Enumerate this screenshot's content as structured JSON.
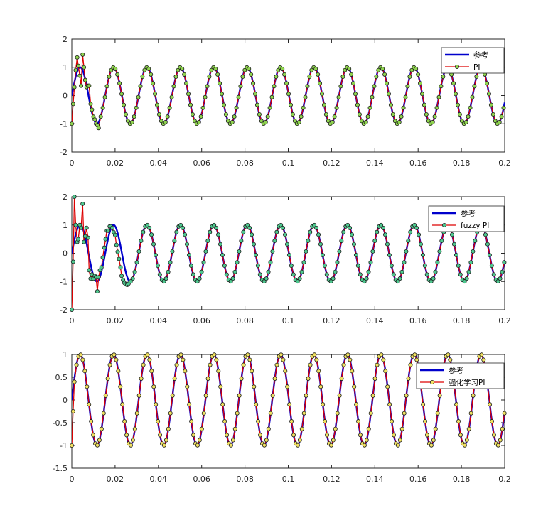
{
  "chart_data": [
    {
      "type": "line",
      "xlim": [
        0,
        0.2
      ],
      "ylim": [
        -2,
        2
      ],
      "xticks": [
        "0",
        "0.02",
        "0.04",
        "0.06",
        "0.08",
        "0.1",
        "0.12",
        "0.14",
        "0.16",
        "0.18",
        "0.2"
      ],
      "yticks": [
        "2",
        "1",
        "0",
        "-1",
        "-2"
      ],
      "legend_position": "top-right",
      "reference_frequency_hz": 64.8,
      "series": [
        {
          "name": "参考",
          "color": "#0000cc",
          "kind": "reference"
        },
        {
          "name": "PI",
          "color": "#dd0000",
          "marker_color": "#8fd44f",
          "kind": "controller",
          "transient_points": [
            [
              0,
              -1.0
            ],
            [
              0.0006,
              -0.3
            ],
            [
              0.0012,
              0.3
            ],
            [
              0.0018,
              0.9
            ],
            [
              0.0025,
              1.35
            ],
            [
              0.003,
              1.05
            ],
            [
              0.0037,
              0.7
            ],
            [
              0.0043,
              0.35
            ],
            [
              0.005,
              1.45
            ],
            [
              0.0056,
              1.0
            ],
            [
              0.0062,
              0.55
            ],
            [
              0.0068,
              0.3
            ],
            [
              0.0075,
              0.35
            ],
            [
              0.008,
              0.35
            ],
            [
              0.0087,
              -0.3
            ],
            [
              0.0093,
              -0.5
            ],
            [
              0.01,
              -0.75
            ],
            [
              0.0106,
              -0.85
            ],
            [
              0.0112,
              -1.0
            ],
            [
              0.0118,
              -1.05
            ],
            [
              0.0124,
              -1.15
            ]
          ]
        }
      ]
    },
    {
      "type": "line",
      "xlim": [
        0,
        0.2
      ],
      "ylim": [
        -2,
        2
      ],
      "xticks": [
        "0",
        "0.02",
        "0.04",
        "0.06",
        "0.08",
        "0.1",
        "0.12",
        "0.14",
        "0.16",
        "0.18",
        "0.2"
      ],
      "yticks": [
        "2",
        "1",
        "0",
        "-1",
        "-2"
      ],
      "legend_position": "top-right",
      "reference_frequency_hz": 64.8,
      "series": [
        {
          "name": "参考",
          "color": "#0000cc",
          "kind": "reference"
        },
        {
          "name": "fuzzy PI",
          "color": "#dd0000",
          "marker_color": "#4fc88f",
          "kind": "controller",
          "transient_points": [
            [
              0,
              -2.0
            ],
            [
              0.0006,
              -0.3
            ],
            [
              0.0012,
              2.0
            ],
            [
              0.0018,
              1.0
            ],
            [
              0.0025,
              0.4
            ],
            [
              0.003,
              0.5
            ],
            [
              0.0037,
              1.0
            ],
            [
              0.0043,
              0.9
            ],
            [
              0.005,
              1.75
            ],
            [
              0.0056,
              0.4
            ],
            [
              0.0062,
              0.6
            ],
            [
              0.0068,
              0.9
            ],
            [
              0.0075,
              0.55
            ],
            [
              0.008,
              -0.6
            ],
            [
              0.0087,
              -0.9
            ],
            [
              0.0093,
              -0.75
            ],
            [
              0.01,
              -0.9
            ],
            [
              0.0106,
              -0.8
            ],
            [
              0.0112,
              -0.85
            ],
            [
              0.0118,
              -1.35
            ],
            [
              0.0124,
              -0.85
            ],
            [
              0.013,
              -0.6
            ],
            [
              0.0137,
              -0.5
            ],
            [
              0.0143,
              -0.15
            ],
            [
              0.015,
              0.2
            ],
            [
              0.0156,
              0.5
            ],
            [
              0.0162,
              0.8
            ],
            [
              0.0168,
              0.8
            ],
            [
              0.0175,
              0.95
            ],
            [
              0.018,
              0.95
            ],
            [
              0.0187,
              0.9
            ],
            [
              0.0193,
              0.75
            ],
            [
              0.02,
              0.65
            ],
            [
              0.0206,
              0.3
            ],
            [
              0.0212,
              0.05
            ],
            [
              0.0218,
              -0.2
            ],
            [
              0.0225,
              -0.5
            ],
            [
              0.023,
              -0.8
            ],
            [
              0.0237,
              -0.95
            ],
            [
              0.0243,
              -1.05
            ],
            [
              0.025,
              -1.1
            ],
            [
              0.0256,
              -1.12
            ],
            [
              0.0262,
              -1.08
            ]
          ]
        }
      ]
    },
    {
      "type": "line",
      "xlim": [
        0,
        0.2
      ],
      "ylim": [
        -1.5,
        1
      ],
      "xticks": [
        "0",
        "0.02",
        "0.04",
        "0.06",
        "0.08",
        "0.1",
        "0.12",
        "0.14",
        "0.16",
        "0.18",
        "0.2"
      ],
      "yticks": [
        "1",
        "0.5",
        "0",
        "-0.5",
        "-1",
        "-1.5"
      ],
      "legend_position": "top-right",
      "reference_frequency_hz": 64.8,
      "series": [
        {
          "name": "参考",
          "color": "#0000cc",
          "kind": "reference"
        },
        {
          "name": "强化学习PI",
          "color": "#dd0000",
          "marker_color": "#f0e060",
          "kind": "controller",
          "transient_points": [
            [
              0,
              -1.0
            ],
            [
              0.0006,
              -0.25
            ],
            [
              0.0012,
              0.4
            ]
          ]
        }
      ]
    }
  ]
}
